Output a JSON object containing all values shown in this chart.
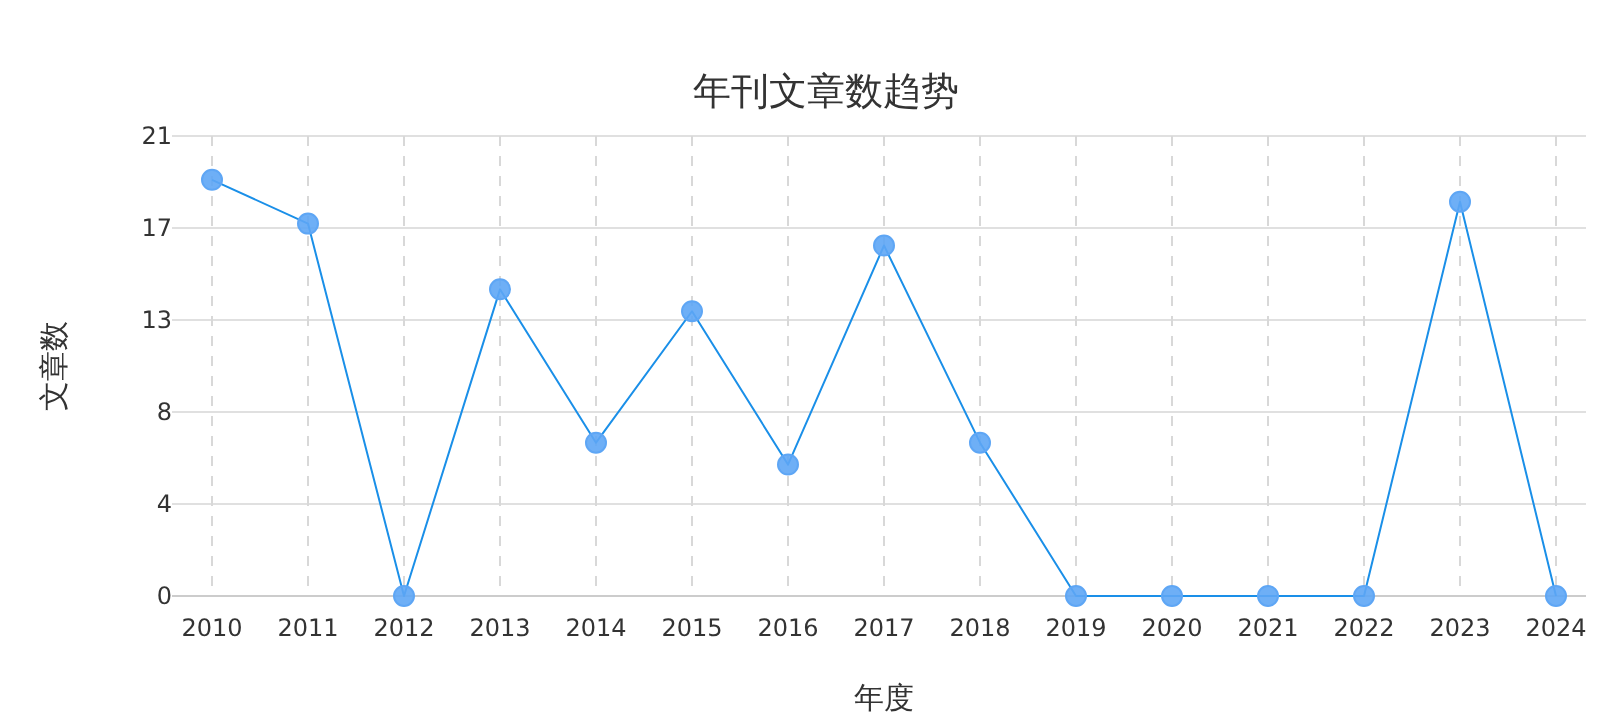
{
  "chart_data": {
    "type": "line",
    "title": "年刊文章数趋势",
    "xlabel": "年度",
    "ylabel": "文章数",
    "categories": [
      "2010",
      "2011",
      "2012",
      "2013",
      "2014",
      "2015",
      "2016",
      "2017",
      "2018",
      "2019",
      "2020",
      "2021",
      "2022",
      "2023",
      "2024"
    ],
    "series": [
      {
        "color": "#1a8fe8",
        "values": [
          19,
          17,
          0,
          14,
          7,
          13,
          6,
          16,
          7,
          0,
          0,
          0,
          0,
          18,
          0
        ]
      }
    ],
    "ylim": [
      0,
      21
    ],
    "yticks": [
      0,
      {
        "value": 4.2,
        "label": "4"
      },
      {
        "value": 8.4,
        "label": "8"
      },
      {
        "value": 12.6,
        "label": "13"
      },
      {
        "value": 16.8,
        "label": "17"
      },
      21
    ],
    "grid": true,
    "marker": "circle",
    "line_style": "solid"
  }
}
